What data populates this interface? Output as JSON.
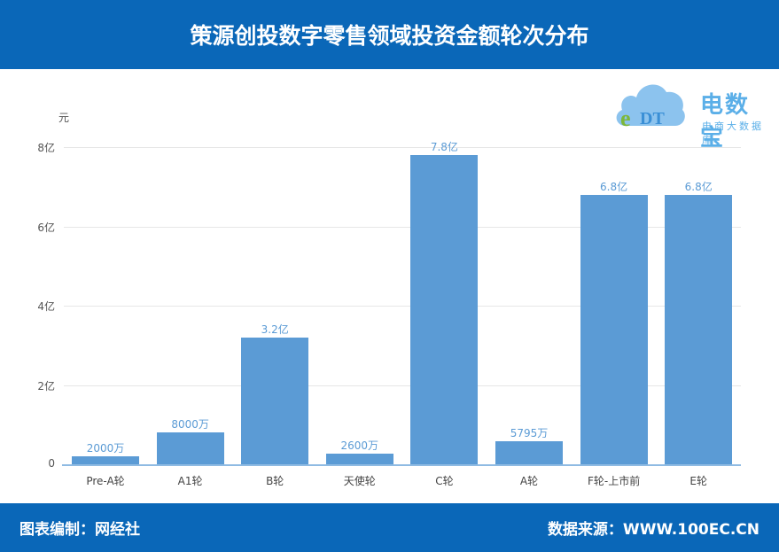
{
  "header": {
    "title": "策源创投数字零售领域投资金额轮次分布"
  },
  "logo": {
    "mark": "eDT",
    "brand": "电数宝",
    "subtitle": "电商大数据库"
  },
  "footer": {
    "left": "图表编制：网经社",
    "right": "数据来源：WWW.100EC.CN"
  },
  "colors": {
    "header_bg": "#0A67B8",
    "bar": "#5B9BD5",
    "label": "#5B9BD5"
  },
  "chart_data": {
    "type": "bar",
    "title": "策源创投数字零售领域投资金额轮次分布",
    "ylabel": "元",
    "xlabel": "",
    "categories": [
      "Pre-A轮",
      "A1轮",
      "B轮",
      "天使轮",
      "C轮",
      "A轮",
      "F轮-上市前",
      "E轮"
    ],
    "values": [
      20000000,
      80000000,
      320000000,
      26000000,
      780000000,
      57950000,
      680000000,
      680000000
    ],
    "value_labels": [
      "2000万",
      "8000万",
      "3.2亿",
      "2600万",
      "7.8亿",
      "5795万",
      "6.8亿",
      "6.8亿"
    ],
    "yticks": [
      "0",
      "2亿",
      "4亿",
      "6亿",
      "8亿"
    ],
    "ylim": [
      0,
      800000000
    ],
    "grid": true,
    "legend": "none"
  }
}
